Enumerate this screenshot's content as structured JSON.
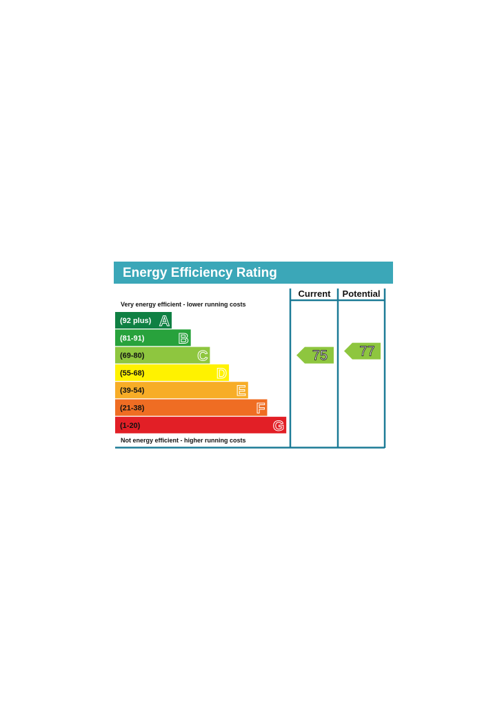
{
  "title": "Energy Efficiency Rating",
  "columns": {
    "current": "Current",
    "potential": "Potential"
  },
  "top_caption": "Very energy efficient - lower running costs",
  "bottom_caption": "Not energy efficient - higher running costs",
  "colors": {
    "header": "#3ba7b8",
    "frame": "#1b7a96"
  },
  "chart_data": {
    "type": "bar",
    "title": "Energy Efficiency Rating",
    "bands": [
      {
        "letter": "A",
        "range": "(92 plus)",
        "color": "#0f8043",
        "range_color": "#ffffff"
      },
      {
        "letter": "B",
        "range": "(81-91)",
        "color": "#28a23c",
        "range_color": "#ffffff"
      },
      {
        "letter": "C",
        "range": "(69-80)",
        "color": "#8ec63f",
        "range_color": "#111111"
      },
      {
        "letter": "D",
        "range": "(55-68)",
        "color": "#fff200",
        "range_color": "#111111"
      },
      {
        "letter": "E",
        "range": "(39-54)",
        "color": "#f7ad27",
        "range_color": "#111111"
      },
      {
        "letter": "F",
        "range": "(21-38)",
        "color": "#ef6d23",
        "range_color": "#111111"
      },
      {
        "letter": "G",
        "range": "(1-20)",
        "color": "#e21f26",
        "range_color": "#111111"
      }
    ],
    "current": {
      "value": 75,
      "band": "C",
      "color": "#8ec63f"
    },
    "potential": {
      "value": 77,
      "band": "C",
      "color": "#8ec63f"
    }
  }
}
